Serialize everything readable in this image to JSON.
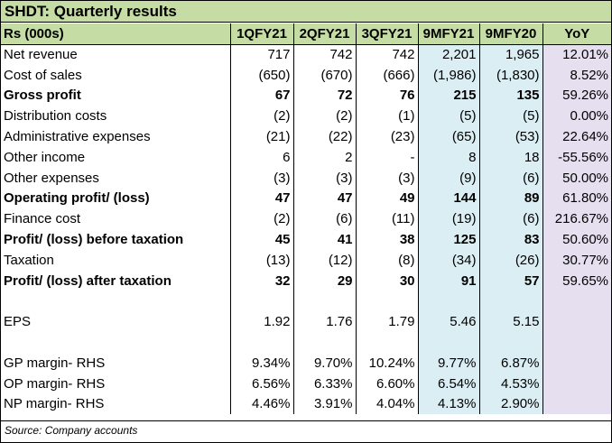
{
  "title": "SHDT: Quarterly results",
  "header": [
    "Rs (000s)",
    "1QFY21",
    "2QFY21",
    "3QFY21",
    "9MFY21",
    "9MFY20",
    "YoY"
  ],
  "rows": [
    {
      "label": "Net revenue",
      "bold": false,
      "cells": [
        "717",
        "742",
        "742",
        "2,201",
        "1,965",
        "12.01%"
      ]
    },
    {
      "label": "Cost of sales",
      "bold": false,
      "cells": [
        "(650)",
        "(670)",
        "(666)",
        "(1,986)",
        "(1,830)",
        "8.52%"
      ]
    },
    {
      "label": "Gross profit",
      "bold": true,
      "cells": [
        "67",
        "72",
        "76",
        "215",
        "135",
        "59.26%"
      ]
    },
    {
      "label": "Distribution costs",
      "bold": false,
      "cells": [
        "(2)",
        "(2)",
        "(1)",
        "(5)",
        "(5)",
        "0.00%"
      ]
    },
    {
      "label": "Administrative expenses",
      "bold": false,
      "cells": [
        "(21)",
        "(22)",
        "(23)",
        "(65)",
        "(53)",
        "22.64%"
      ]
    },
    {
      "label": "Other income",
      "bold": false,
      "cells": [
        "6",
        "2",
        "-",
        "8",
        "18",
        "-55.56%"
      ]
    },
    {
      "label": "Other expenses",
      "bold": false,
      "cells": [
        "(3)",
        "(3)",
        "(3)",
        "(9)",
        "(6)",
        "50.00%"
      ]
    },
    {
      "label": "Operating profit/ (loss)",
      "bold": true,
      "cells": [
        "47",
        "47",
        "49",
        "144",
        "89",
        "61.80%"
      ]
    },
    {
      "label": "Finance cost",
      "bold": false,
      "cells": [
        "(2)",
        "(6)",
        "(11)",
        "(19)",
        "(6)",
        "216.67%"
      ]
    },
    {
      "label": "Profit/ (loss) before taxation",
      "bold": true,
      "cells": [
        "45",
        "41",
        "38",
        "125",
        "83",
        "50.60%"
      ]
    },
    {
      "label": "Taxation",
      "bold": false,
      "cells": [
        "(13)",
        "(12)",
        "(8)",
        "(34)",
        "(26)",
        "30.77%"
      ]
    },
    {
      "label": "Profit/ (loss) after taxation",
      "bold": true,
      "cells": [
        "32",
        "29",
        "30",
        "91",
        "57",
        "59.65%"
      ]
    },
    {
      "label": "",
      "bold": false,
      "cells": [
        "",
        "",
        "",
        "",
        "",
        ""
      ]
    },
    {
      "label": "EPS",
      "bold": false,
      "cells": [
        "1.92",
        "1.76",
        "1.79",
        "5.46",
        "5.15",
        ""
      ]
    },
    {
      "label": "",
      "bold": false,
      "cells": [
        "",
        "",
        "",
        "",
        "",
        ""
      ]
    },
    {
      "label": "GP margin- RHS",
      "bold": false,
      "cells": [
        "9.34%",
        "9.70%",
        "10.24%",
        "9.77%",
        "6.87%",
        ""
      ]
    },
    {
      "label": "OP margin- RHS",
      "bold": false,
      "cells": [
        "6.56%",
        "6.33%",
        "6.60%",
        "6.54%",
        "4.53%",
        ""
      ]
    },
    {
      "label": "NP margin- RHS",
      "bold": false,
      "cells": [
        "4.46%",
        "3.91%",
        "4.04%",
        "4.13%",
        "2.90%",
        ""
      ]
    }
  ],
  "source": "Source: Company accounts",
  "colors": {
    "header_green": "#c5dca4",
    "nine_month_blue": "#dbeef4",
    "yoy_purple": "#e5dff0"
  }
}
